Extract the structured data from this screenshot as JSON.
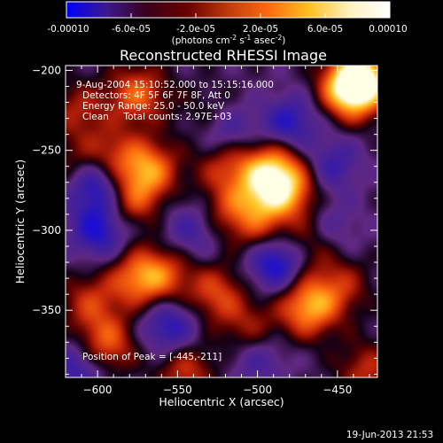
{
  "colorbar": {
    "ticks": [
      "-0.00010",
      "-6.0e-05",
      "-2.0e-05",
      "2.0e-05",
      "6.0e-05",
      "0.00010"
    ],
    "unit_main": "(photons cm",
    "unit_sup1": "-2",
    "unit_mid1": " s",
    "unit_sup2": "-1",
    "unit_mid2": " asec",
    "unit_sup3": "-2",
    "unit_end": ")",
    "colors": [
      "#0000ff",
      "#3a1a8c",
      "#3a0018",
      "#6a0000",
      "#c03a0c",
      "#ff6a10",
      "#ffc020",
      "#fff2c0",
      "#ffffff"
    ]
  },
  "chart_data": {
    "type": "heatmap",
    "title": "Reconstructed RHESSI Image",
    "xlabel": "Heliocentric X (arcsec)",
    "ylabel": "Heliocentric Y (arcsec)",
    "xlim": [
      -620,
      -425
    ],
    "ylim": [
      -392,
      -197
    ],
    "x_ticks": [
      -600,
      -550,
      -500,
      -450
    ],
    "x_tick_labels": [
      "−600",
      "−550",
      "−500",
      "−450"
    ],
    "y_ticks": [
      -200,
      -250,
      -300,
      -350
    ],
    "y_tick_labels": [
      "−200",
      "−250",
      "−300",
      "−350"
    ],
    "color_range": [
      -0.0001,
      0.0001
    ],
    "colormap": "rhessi-blue-black-red-yellow-white",
    "annotations": [
      "9-Aug-2004 15:10:52.000 to 15:15:16.000",
      "Detectors: 4F 5F 6F 7F 8F, Att 0",
      "Energy Range: 25.0 - 50.0 keV",
      "Clean     Total counts: 2.97E+03"
    ],
    "peak_label": "Position of Peak = [-445,-211]",
    "peak_position": [
      -445,
      -211
    ],
    "blobs": [
      {
        "x": -442,
        "y": -212,
        "v": 1.0
      },
      {
        "x": -434,
        "y": -205,
        "v": 0.9
      },
      {
        "x": -575,
        "y": -215,
        "v": 0.65
      },
      {
        "x": -592,
        "y": -255,
        "v": 0.55
      },
      {
        "x": -568,
        "y": -262,
        "v": 0.75
      },
      {
        "x": -580,
        "y": -282,
        "v": 0.55
      },
      {
        "x": -520,
        "y": -258,
        "v": 0.55
      },
      {
        "x": -492,
        "y": -262,
        "v": 0.8
      },
      {
        "x": -480,
        "y": -275,
        "v": 0.7
      },
      {
        "x": -500,
        "y": -282,
        "v": 0.5
      },
      {
        "x": -520,
        "y": -290,
        "v": 0.4
      },
      {
        "x": -472,
        "y": -244,
        "v": 0.35
      },
      {
        "x": -495,
        "y": -305,
        "v": 0.45
      },
      {
        "x": -468,
        "y": -310,
        "v": 0.45
      },
      {
        "x": -575,
        "y": -330,
        "v": 0.65
      },
      {
        "x": -558,
        "y": -328,
        "v": 0.5
      },
      {
        "x": -605,
        "y": -345,
        "v": 0.45
      },
      {
        "x": -526,
        "y": -340,
        "v": 0.55
      },
      {
        "x": -468,
        "y": -348,
        "v": 0.85
      },
      {
        "x": -448,
        "y": -335,
        "v": 0.4
      },
      {
        "x": -505,
        "y": -362,
        "v": 0.4
      },
      {
        "x": -595,
        "y": -372,
        "v": 0.7
      },
      {
        "x": -545,
        "y": -388,
        "v": 0.5
      },
      {
        "x": -432,
        "y": -388,
        "v": 0.45
      },
      {
        "x": -614,
        "y": -260,
        "v": 0.3
      },
      {
        "x": -530,
        "y": -228,
        "v": 0.25
      },
      {
        "x": -612,
        "y": -225,
        "v": 0.4
      },
      {
        "x": -600,
        "y": -270,
        "v": -0.8
      },
      {
        "x": -598,
        "y": -300,
        "v": -0.6
      },
      {
        "x": -520,
        "y": -240,
        "v": -0.5
      },
      {
        "x": -478,
        "y": -236,
        "v": -0.75
      },
      {
        "x": -488,
        "y": -318,
        "v": -0.9
      },
      {
        "x": -555,
        "y": -360,
        "v": -0.55
      },
      {
        "x": -455,
        "y": -258,
        "v": -0.45
      },
      {
        "x": -540,
        "y": -300,
        "v": -0.4
      },
      {
        "x": -610,
        "y": -385,
        "v": -0.5
      },
      {
        "x": -500,
        "y": -380,
        "v": -0.35
      },
      {
        "x": -455,
        "y": -300,
        "v": -0.3
      }
    ]
  },
  "footer": {
    "timestamp": "19-Jun-2013 21:53"
  }
}
